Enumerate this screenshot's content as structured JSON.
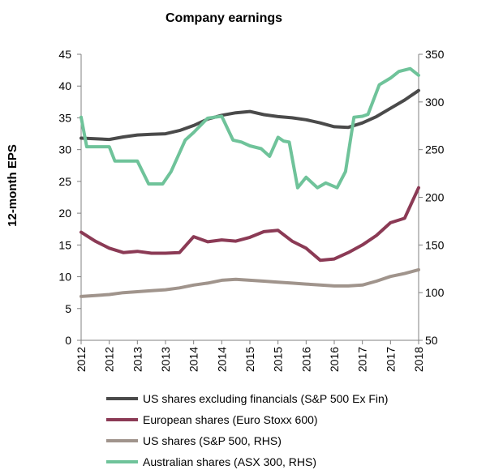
{
  "chart_data": {
    "type": "line",
    "title": "Company earnings",
    "ylabel": "12-month EPS",
    "ylabel_right": "",
    "ylim": [
      0,
      45
    ],
    "ylim_right": [
      50,
      350
    ],
    "y_ticks": [
      "0",
      "5",
      "10",
      "15",
      "20",
      "25",
      "30",
      "35",
      "40",
      "45"
    ],
    "y_ticks_right": [
      "50",
      "100",
      "150",
      "200",
      "250",
      "300",
      "350"
    ],
    "x_ticks": [
      "2012",
      "2012",
      "2013",
      "2013",
      "2014",
      "2014",
      "2015",
      "2015",
      "2016",
      "2016",
      "2017",
      "2017",
      "2018"
    ],
    "grid": false,
    "legend_position": "bottom",
    "series": [
      {
        "name": "US shares excluding financials (S&P 500 Ex Fin)",
        "axis": "left",
        "color": "#4a4a4a",
        "x": [
          2012.0,
          2012.25,
          2012.5,
          2012.75,
          2013.0,
          2013.25,
          2013.5,
          2013.75,
          2014.0,
          2014.25,
          2014.5,
          2014.75,
          2015.0,
          2015.25,
          2015.5,
          2015.75,
          2016.0,
          2016.25,
          2016.5,
          2016.75,
          2017.0,
          2017.25,
          2017.5,
          2017.75,
          2018.0
        ],
        "values": [
          31.8,
          31.7,
          31.6,
          32.0,
          32.3,
          32.4,
          32.5,
          33.0,
          33.8,
          34.8,
          35.4,
          35.8,
          36.0,
          35.5,
          35.2,
          35.0,
          34.7,
          34.2,
          33.6,
          33.5,
          34.2,
          35.2,
          36.5,
          37.8,
          39.3
        ]
      },
      {
        "name": "European shares (Euro Stoxx 600)",
        "axis": "left",
        "color": "#8b3a55",
        "x": [
          2012.0,
          2012.25,
          2012.5,
          2012.75,
          2013.0,
          2013.25,
          2013.5,
          2013.75,
          2014.0,
          2014.25,
          2014.5,
          2014.75,
          2015.0,
          2015.25,
          2015.5,
          2015.75,
          2016.0,
          2016.25,
          2016.5,
          2016.75,
          2017.0,
          2017.25,
          2017.5,
          2017.75,
          2018.0
        ],
        "values": [
          17.0,
          15.6,
          14.5,
          13.8,
          14.0,
          13.7,
          13.7,
          13.8,
          16.3,
          15.5,
          15.8,
          15.6,
          16.2,
          17.1,
          17.3,
          15.6,
          14.5,
          12.6,
          12.8,
          13.8,
          15.0,
          16.5,
          18.5,
          19.2,
          24.0
        ]
      },
      {
        "name": "US shares (S&P 500, RHS)",
        "axis": "right",
        "color": "#a0948c",
        "x": [
          2012.0,
          2012.25,
          2012.5,
          2012.75,
          2013.0,
          2013.25,
          2013.5,
          2013.75,
          2014.0,
          2014.25,
          2014.5,
          2014.75,
          2015.0,
          2015.25,
          2015.5,
          2015.75,
          2016.0,
          2016.25,
          2016.5,
          2016.75,
          2017.0,
          2017.25,
          2017.5,
          2017.75,
          2018.0
        ],
        "values": [
          96,
          97,
          98,
          100,
          101,
          102,
          103,
          105,
          108,
          110,
          113,
          114,
          113,
          112,
          111,
          110,
          109,
          108,
          107,
          107,
          108,
          112,
          117,
          120,
          124
        ]
      },
      {
        "name": "Australian shares (ASX 300, RHS)",
        "axis": "right",
        "color": "#6fc39a",
        "x": [
          2012.0,
          2012.1,
          2012.3,
          2012.5,
          2012.6,
          2012.85,
          2013.0,
          2013.2,
          2013.45,
          2013.6,
          2013.85,
          2014.0,
          2014.25,
          2014.5,
          2014.7,
          2014.85,
          2015.0,
          2015.2,
          2015.35,
          2015.5,
          2015.6,
          2015.7,
          2015.85,
          2016.0,
          2016.2,
          2016.35,
          2016.55,
          2016.7,
          2016.85,
          2017.0,
          2017.1,
          2017.3,
          2017.5,
          2017.65,
          2017.85,
          2018.0
        ],
        "values": [
          284,
          253,
          253,
          253,
          238,
          238,
          238,
          214,
          214,
          227,
          260,
          268,
          283,
          285,
          260,
          258,
          254,
          251,
          243,
          263,
          259,
          258,
          210,
          221,
          210,
          215,
          210,
          227,
          284,
          285,
          287,
          318,
          325,
          332,
          335,
          328
        ]
      }
    ]
  }
}
